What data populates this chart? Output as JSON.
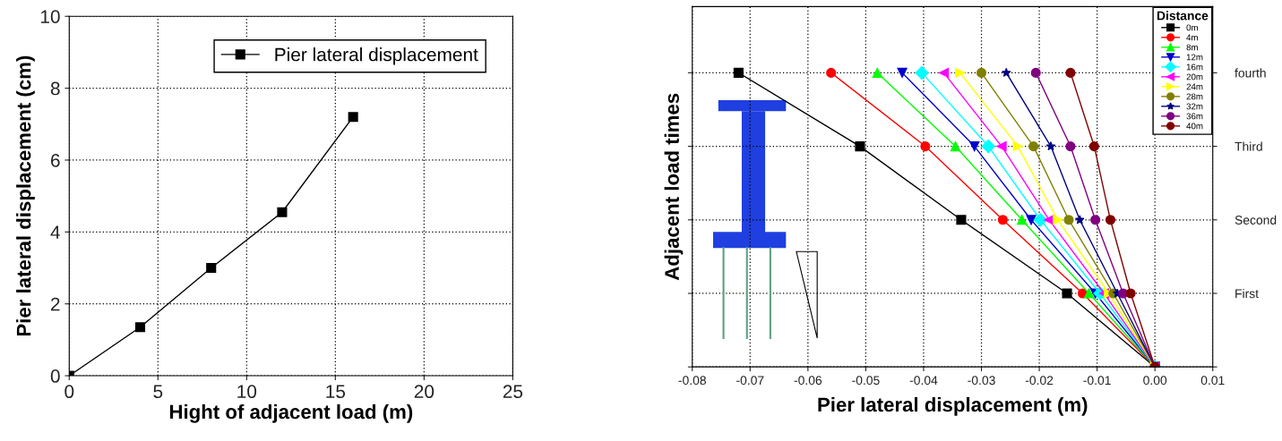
{
  "chart_data": [
    {
      "type": "line",
      "xlabel": "Hight of adjacent load (m)",
      "ylabel": "Pier lateral displacement (cm)",
      "xlim": [
        0,
        25
      ],
      "xticks": [
        0,
        5,
        10,
        15,
        20,
        25
      ],
      "ylim": [
        0,
        10
      ],
      "yticks": [
        0,
        2,
        4,
        6,
        8,
        10
      ],
      "grid": true,
      "legend": "top right",
      "marker": "square",
      "series": [
        {
          "name": "Pier lateral displacement",
          "color": "#000000",
          "x": [
            0,
            4,
            8,
            12,
            16
          ],
          "values": [
            0,
            1.35,
            3.0,
            4.55,
            7.2
          ]
        }
      ]
    },
    {
      "type": "line",
      "orientation": "horizontal",
      "xlabel": "Pier lateral displacement (m)",
      "ylabel": "Adjacent load times",
      "legend_title": "Distance",
      "categories": [
        "fourth",
        "Third",
        "Second",
        "First",
        null
      ],
      "xlim": [
        -0.08,
        0.01
      ],
      "xticks": [
        {
          "value": -0.08,
          "label": "-0.08"
        },
        {
          "value": -0.07,
          "label": "-0.07"
        },
        {
          "value": -0.06,
          "label": "-0.06"
        },
        {
          "value": -0.05,
          "label": "-0.05"
        },
        {
          "value": -0.04,
          "label": "-0.04"
        },
        {
          "value": -0.03,
          "label": "-0.03"
        },
        {
          "value": -0.02,
          "label": "-0.02"
        },
        {
          "value": -0.01,
          "label": "-0.01"
        },
        {
          "value": 0,
          "label": "0.00"
        },
        {
          "value": 0.01,
          "label": "0.01"
        }
      ],
      "grid": true,
      "legend": "top right",
      "series": [
        {
          "name": "0m",
          "color": "#000000",
          "marker": "square",
          "values": [
            -0.072,
            -0.051,
            -0.0335,
            -0.0152,
            0
          ]
        },
        {
          "name": "4m",
          "color": "#ff0000",
          "marker": "circle",
          "values": [
            -0.056,
            -0.0397,
            -0.0263,
            -0.0125,
            0
          ]
        },
        {
          "name": "8m",
          "color": "#00ff00",
          "marker": "triangle",
          "values": [
            -0.048,
            -0.0345,
            -0.023,
            -0.0114,
            0
          ]
        },
        {
          "name": "12m",
          "color": "#0000cc",
          "marker": "triangle_down",
          "values": [
            -0.0437,
            -0.0312,
            -0.0214,
            -0.0103,
            0
          ]
        },
        {
          "name": "16m",
          "color": "#00ffff",
          "marker": "diamond",
          "values": [
            -0.0403,
            -0.0288,
            -0.0198,
            -0.0095,
            0
          ]
        },
        {
          "name": "20m",
          "color": "#ff00ff",
          "marker": "triangle_left",
          "values": [
            -0.0365,
            -0.0265,
            -0.0183,
            -0.0088,
            0
          ]
        },
        {
          "name": "24m",
          "color": "#ffff00",
          "marker": "triangle_right",
          "values": [
            -0.0337,
            -0.0237,
            -0.0168,
            -0.008,
            0
          ]
        },
        {
          "name": "28m",
          "color": "#808000",
          "marker": "circle",
          "values": [
            -0.03,
            -0.021,
            -0.0149,
            -0.0072,
            0
          ]
        },
        {
          "name": "32m",
          "color": "#000080",
          "marker": "star",
          "values": [
            -0.0257,
            -0.018,
            -0.013,
            -0.0065,
            0
          ]
        },
        {
          "name": "36m",
          "color": "#800080",
          "marker": "circle",
          "values": [
            -0.0206,
            -0.0146,
            -0.0103,
            -0.0055,
            0
          ]
        },
        {
          "name": "40m",
          "color": "#800000",
          "marker": "circle",
          "values": [
            -0.0146,
            -0.0105,
            -0.0077,
            -0.0042,
            0
          ]
        }
      ]
    }
  ]
}
